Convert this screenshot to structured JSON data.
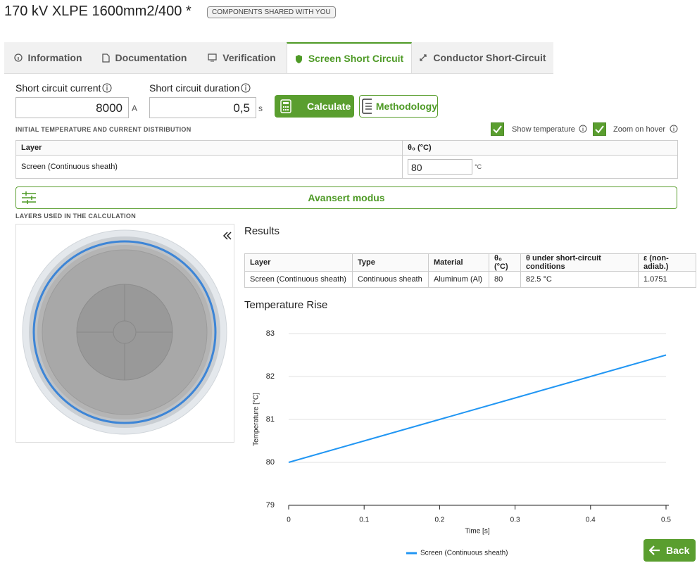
{
  "header": {
    "title": "170 kV XLPE 1600mm2/400 *",
    "badge": "COMPONENTS SHARED WITH YOU"
  },
  "tabs": [
    {
      "label": "Information",
      "active": false
    },
    {
      "label": "Documentation",
      "active": false
    },
    {
      "label": "Verification",
      "active": false
    },
    {
      "label": "Screen Short Circuit",
      "active": true
    },
    {
      "label": "Conductor Short-Circuit",
      "active": false
    }
  ],
  "inputs": {
    "current": {
      "label": "Short circuit current",
      "value": 8000,
      "unit": "A"
    },
    "duration": {
      "label": "Short circuit duration",
      "value": "0,5",
      "unit": "s"
    }
  },
  "buttons": {
    "calculate": "Calculate",
    "methodology": "Methodology",
    "back": "Back"
  },
  "initial": {
    "heading": "INITIAL TEMPERATURE AND CURRENT DISTRIBUTION",
    "show_temperature": "Show temperature",
    "zoom_on_hover": "Zoom on hover",
    "table": {
      "headers": [
        "Layer",
        "θ₀ (°C)"
      ],
      "rows": [
        [
          "Screen (Continuous sheath)",
          80
        ]
      ],
      "unit": "°C"
    }
  },
  "advanced": "Avansert modus",
  "layers_heading": "LAYERS USED IN THE CALCULATION",
  "results": {
    "title": "Results",
    "headers": [
      "Layer",
      "Type",
      "Material",
      "θ₀ (°C)",
      "θ under short-circuit conditions",
      "ε (non-adiab.)"
    ],
    "rows": [
      [
        "Screen (Continuous sheath)",
        "Continuous sheath",
        "Aluminum (Al)",
        80,
        "82.5 °C",
        1.0751
      ]
    ]
  },
  "chart_data": {
    "type": "line",
    "title": "Temperature Rise",
    "x_label": "Time [s]",
    "y_label": "Temperature [°C]",
    "x": [
      0,
      0.1,
      0.2,
      0.3,
      0.4,
      0.5
    ],
    "series": [
      {
        "name": "Screen (Continuous sheath)",
        "color": "#2196f3",
        "values": [
          80,
          80.5,
          81,
          81.5,
          82,
          82.5
        ]
      }
    ],
    "xlim": [
      0,
      0.5
    ],
    "ylim": [
      79,
      83
    ],
    "xticks": [
      0,
      0.1,
      0.2,
      0.3,
      0.4,
      0.5
    ],
    "yticks": [
      79,
      80,
      81,
      82,
      83
    ],
    "grid": true
  }
}
